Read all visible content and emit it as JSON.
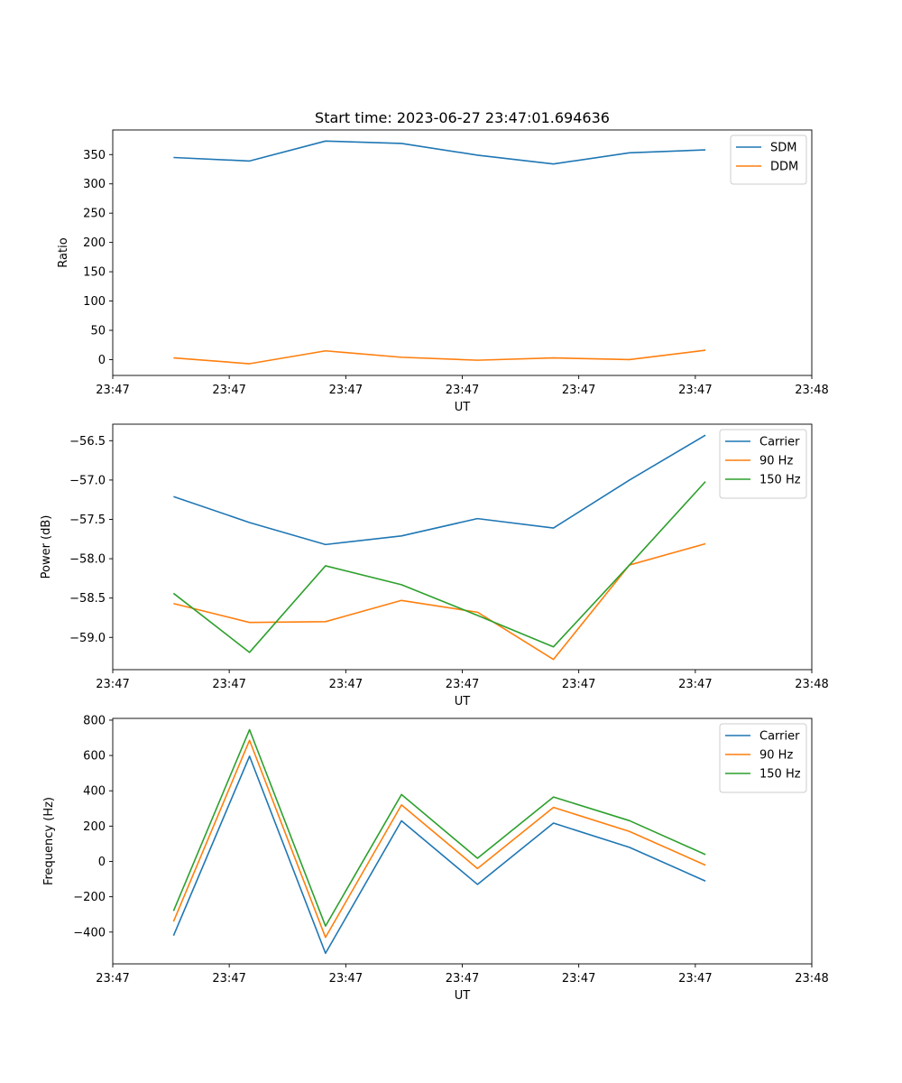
{
  "figure": {
    "title": "Start time: 2023-06-27 23:47:01.694636"
  },
  "chart_data": [
    {
      "type": "line",
      "title": "Start time: 2023-06-27 23:47:01.694636",
      "xlabel": "UT",
      "ylabel": "Ratio",
      "x_index": [
        1,
        2,
        3,
        4,
        5,
        6,
        7,
        8
      ],
      "xlim": [
        0.2,
        9.4
      ],
      "xtick_positions": [
        0.2,
        1.733,
        3.267,
        4.8,
        6.333,
        7.867,
        9.4
      ],
      "xtick_labels": [
        "23:47",
        "23:47",
        "23:47",
        "23:47",
        "23:47",
        "23:47",
        "23:48"
      ],
      "ylim": [
        -27,
        392
      ],
      "yticks": [
        0,
        50,
        100,
        150,
        200,
        250,
        300,
        350
      ],
      "ytick_labels": [
        "0",
        "50",
        "100",
        "150",
        "200",
        "250",
        "300",
        "350"
      ],
      "legend": "top-right",
      "grid": false,
      "series": [
        {
          "name": "SDM",
          "color": "#1f77b4",
          "values": [
            345,
            339,
            373,
            369,
            349,
            334,
            353,
            358
          ]
        },
        {
          "name": "DDM",
          "color": "#ff7f0e",
          "values": [
            3,
            -7,
            15,
            4,
            -1,
            3,
            0,
            16
          ]
        }
      ]
    },
    {
      "type": "line",
      "title": "",
      "xlabel": "UT",
      "ylabel": "Power (dB)",
      "x_index": [
        1,
        2,
        3,
        4,
        5,
        6,
        7,
        8
      ],
      "xlim": [
        0.2,
        9.4
      ],
      "xtick_positions": [
        0.2,
        1.733,
        3.267,
        4.8,
        6.333,
        7.867,
        9.4
      ],
      "xtick_labels": [
        "23:47",
        "23:47",
        "23:47",
        "23:47",
        "23:47",
        "23:47",
        "23:48"
      ],
      "ylim": [
        -59.41,
        -56.29
      ],
      "yticks": [
        -59.0,
        -58.5,
        -58.0,
        -57.5,
        -57.0,
        -56.5
      ],
      "ytick_labels": [
        "−59.0",
        "−58.5",
        "−58.0",
        "−57.5",
        "−57.0",
        "−56.5"
      ],
      "legend": "top-right",
      "grid": false,
      "series": [
        {
          "name": "Carrier",
          "color": "#1f77b4",
          "values": [
            -57.21,
            -57.54,
            -57.82,
            -57.71,
            -57.49,
            -57.61,
            -57.0,
            -56.43
          ]
        },
        {
          "name": "90 Hz",
          "color": "#ff7f0e",
          "values": [
            -58.57,
            -58.81,
            -58.8,
            -58.53,
            -58.68,
            -59.28,
            -58.08,
            -57.81
          ]
        },
        {
          "name": "150 Hz",
          "color": "#2ca02c",
          "values": [
            -58.44,
            -59.19,
            -58.09,
            -58.33,
            -58.72,
            -59.12,
            -58.08,
            -57.02
          ]
        }
      ]
    },
    {
      "type": "line",
      "title": "",
      "xlabel": "UT",
      "ylabel": "Frequency (Hz)",
      "x_index": [
        1,
        2,
        3,
        4,
        5,
        6,
        7,
        8
      ],
      "xlim": [
        0.2,
        9.4
      ],
      "xtick_positions": [
        0.2,
        1.733,
        3.267,
        4.8,
        6.333,
        7.867,
        9.4
      ],
      "xtick_labels": [
        "23:47",
        "23:47",
        "23:47",
        "23:47",
        "23:47",
        "23:47",
        "23:48"
      ],
      "ylim": [
        -580,
        810
      ],
      "yticks": [
        -400,
        -200,
        0,
        200,
        400,
        600,
        800
      ],
      "ytick_labels": [
        "−400",
        "−200",
        "0",
        "200",
        "400",
        "600",
        "800"
      ],
      "legend": "top-right",
      "grid": false,
      "series": [
        {
          "name": "Carrier",
          "color": "#1f77b4",
          "values": [
            -420,
            596,
            -520,
            230,
            -130,
            217,
            80,
            -111
          ]
        },
        {
          "name": "90 Hz",
          "color": "#ff7f0e",
          "values": [
            -340,
            686,
            -430,
            320,
            -40,
            306,
            170,
            -21
          ]
        },
        {
          "name": "150 Hz",
          "color": "#2ca02c",
          "values": [
            -280,
            746,
            -366,
            379,
            18,
            365,
            231,
            39
          ]
        }
      ]
    }
  ]
}
